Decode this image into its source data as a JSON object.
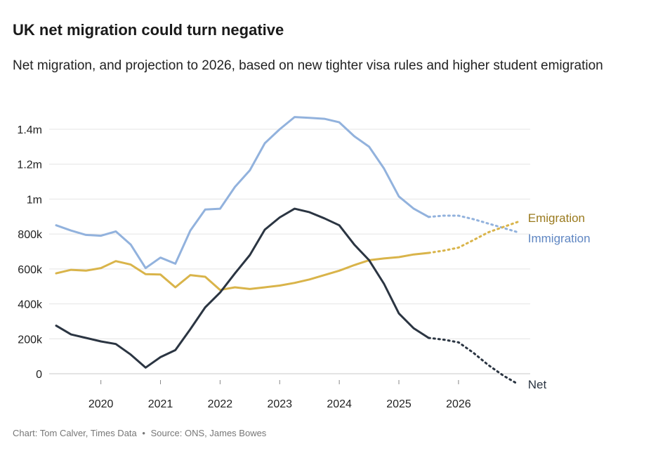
{
  "header": {
    "title": "UK net migration could turn negative",
    "subtitle": "Net migration, and projection to 2026, based on new tighter visa rules and higher student emigration"
  },
  "footer": {
    "chart_credit": "Chart: Tom Calver, Times Data",
    "separator": "•",
    "source": "Source: ONS, James Bowes"
  },
  "chart_data": {
    "type": "line",
    "title": "UK net migration could turn negative",
    "subtitle": "Net migration, and projection to 2026, based on new tighter visa rules and higher student emigration",
    "xlabel": "",
    "ylabel": "",
    "xlim": [
      2019.25,
      2027.05
    ],
    "ylim": [
      0,
      1400000
    ],
    "x_ticks": [
      2020,
      2021,
      2022,
      2023,
      2024,
      2025,
      2026
    ],
    "x_tick_labels": [
      "2020",
      "2021",
      "2022",
      "2023",
      "2024",
      "2025",
      "2026"
    ],
    "y_ticks": [
      0,
      200000,
      400000,
      600000,
      800000,
      1000000,
      1200000,
      1400000
    ],
    "y_tick_labels": [
      "0",
      "200k",
      "400k",
      "600k",
      "800k",
      "1m",
      "1.2m",
      "1.4m"
    ],
    "grid": "horizontal",
    "legend": "direct labels at right end of lines",
    "series": [
      {
        "name": "Immigration",
        "color": "#92b2dd",
        "actual": [
          [
            2019.25,
            850000
          ],
          [
            2019.5,
            820000
          ],
          [
            2019.75,
            795000
          ],
          [
            2020.0,
            790000
          ],
          [
            2020.25,
            815000
          ],
          [
            2020.5,
            740000
          ],
          [
            2020.75,
            605000
          ],
          [
            2021.0,
            665000
          ],
          [
            2021.25,
            630000
          ],
          [
            2021.5,
            820000
          ],
          [
            2021.75,
            940000
          ],
          [
            2022.0,
            945000
          ],
          [
            2022.25,
            1070000
          ],
          [
            2022.5,
            1165000
          ],
          [
            2022.75,
            1320000
          ],
          [
            2023.0,
            1400000
          ],
          [
            2023.25,
            1470000
          ],
          [
            2023.5,
            1465000
          ],
          [
            2023.75,
            1460000
          ],
          [
            2024.0,
            1440000
          ],
          [
            2024.25,
            1360000
          ],
          [
            2024.5,
            1300000
          ],
          [
            2024.75,
            1175000
          ],
          [
            2025.0,
            1015000
          ],
          [
            2025.25,
            945000
          ],
          [
            2025.5,
            898000
          ]
        ],
        "projection": [
          [
            2025.5,
            898000
          ],
          [
            2025.75,
            905000
          ],
          [
            2026.0,
            905000
          ],
          [
            2026.25,
            885000
          ],
          [
            2026.5,
            860000
          ],
          [
            2026.75,
            835000
          ],
          [
            2027.0,
            810000
          ]
        ]
      },
      {
        "name": "Emigration",
        "color": "#d9b44a",
        "actual": [
          [
            2019.25,
            575000
          ],
          [
            2019.5,
            595000
          ],
          [
            2019.75,
            590000
          ],
          [
            2020.0,
            605000
          ],
          [
            2020.25,
            645000
          ],
          [
            2020.5,
            625000
          ],
          [
            2020.75,
            570000
          ],
          [
            2021.0,
            568000
          ],
          [
            2021.25,
            495000
          ],
          [
            2021.5,
            565000
          ],
          [
            2021.75,
            555000
          ],
          [
            2022.0,
            480000
          ],
          [
            2022.25,
            495000
          ],
          [
            2022.5,
            485000
          ],
          [
            2022.75,
            495000
          ],
          [
            2023.0,
            505000
          ],
          [
            2023.25,
            520000
          ],
          [
            2023.5,
            540000
          ],
          [
            2023.75,
            565000
          ],
          [
            2024.0,
            590000
          ],
          [
            2024.25,
            622000
          ],
          [
            2024.5,
            650000
          ],
          [
            2024.75,
            660000
          ],
          [
            2025.0,
            668000
          ],
          [
            2025.25,
            683000
          ],
          [
            2025.5,
            692000
          ]
        ],
        "projection": [
          [
            2025.5,
            692000
          ],
          [
            2025.75,
            705000
          ],
          [
            2026.0,
            722000
          ],
          [
            2026.25,
            765000
          ],
          [
            2026.5,
            810000
          ],
          [
            2026.75,
            840000
          ],
          [
            2027.0,
            870000
          ]
        ]
      },
      {
        "name": "Net",
        "color": "#2b3542",
        "actual": [
          [
            2019.25,
            275000
          ],
          [
            2019.5,
            225000
          ],
          [
            2019.75,
            205000
          ],
          [
            2020.0,
            185000
          ],
          [
            2020.25,
            170000
          ],
          [
            2020.5,
            110000
          ],
          [
            2020.75,
            35000
          ],
          [
            2021.0,
            95000
          ],
          [
            2021.25,
            135000
          ],
          [
            2021.5,
            255000
          ],
          [
            2021.75,
            380000
          ],
          [
            2022.0,
            465000
          ],
          [
            2022.25,
            575000
          ],
          [
            2022.5,
            680000
          ],
          [
            2022.75,
            825000
          ],
          [
            2023.0,
            895000
          ],
          [
            2023.25,
            945000
          ],
          [
            2023.5,
            925000
          ],
          [
            2023.75,
            890000
          ],
          [
            2024.0,
            850000
          ],
          [
            2024.25,
            740000
          ],
          [
            2024.5,
            650000
          ],
          [
            2024.75,
            515000
          ],
          [
            2025.0,
            345000
          ],
          [
            2025.25,
            260000
          ],
          [
            2025.5,
            205000
          ]
        ],
        "projection": [
          [
            2025.5,
            205000
          ],
          [
            2025.75,
            195000
          ],
          [
            2026.0,
            180000
          ],
          [
            2026.25,
            120000
          ],
          [
            2026.5,
            50000
          ],
          [
            2026.75,
            -10000
          ],
          [
            2027.0,
            -60000
          ]
        ]
      }
    ]
  }
}
